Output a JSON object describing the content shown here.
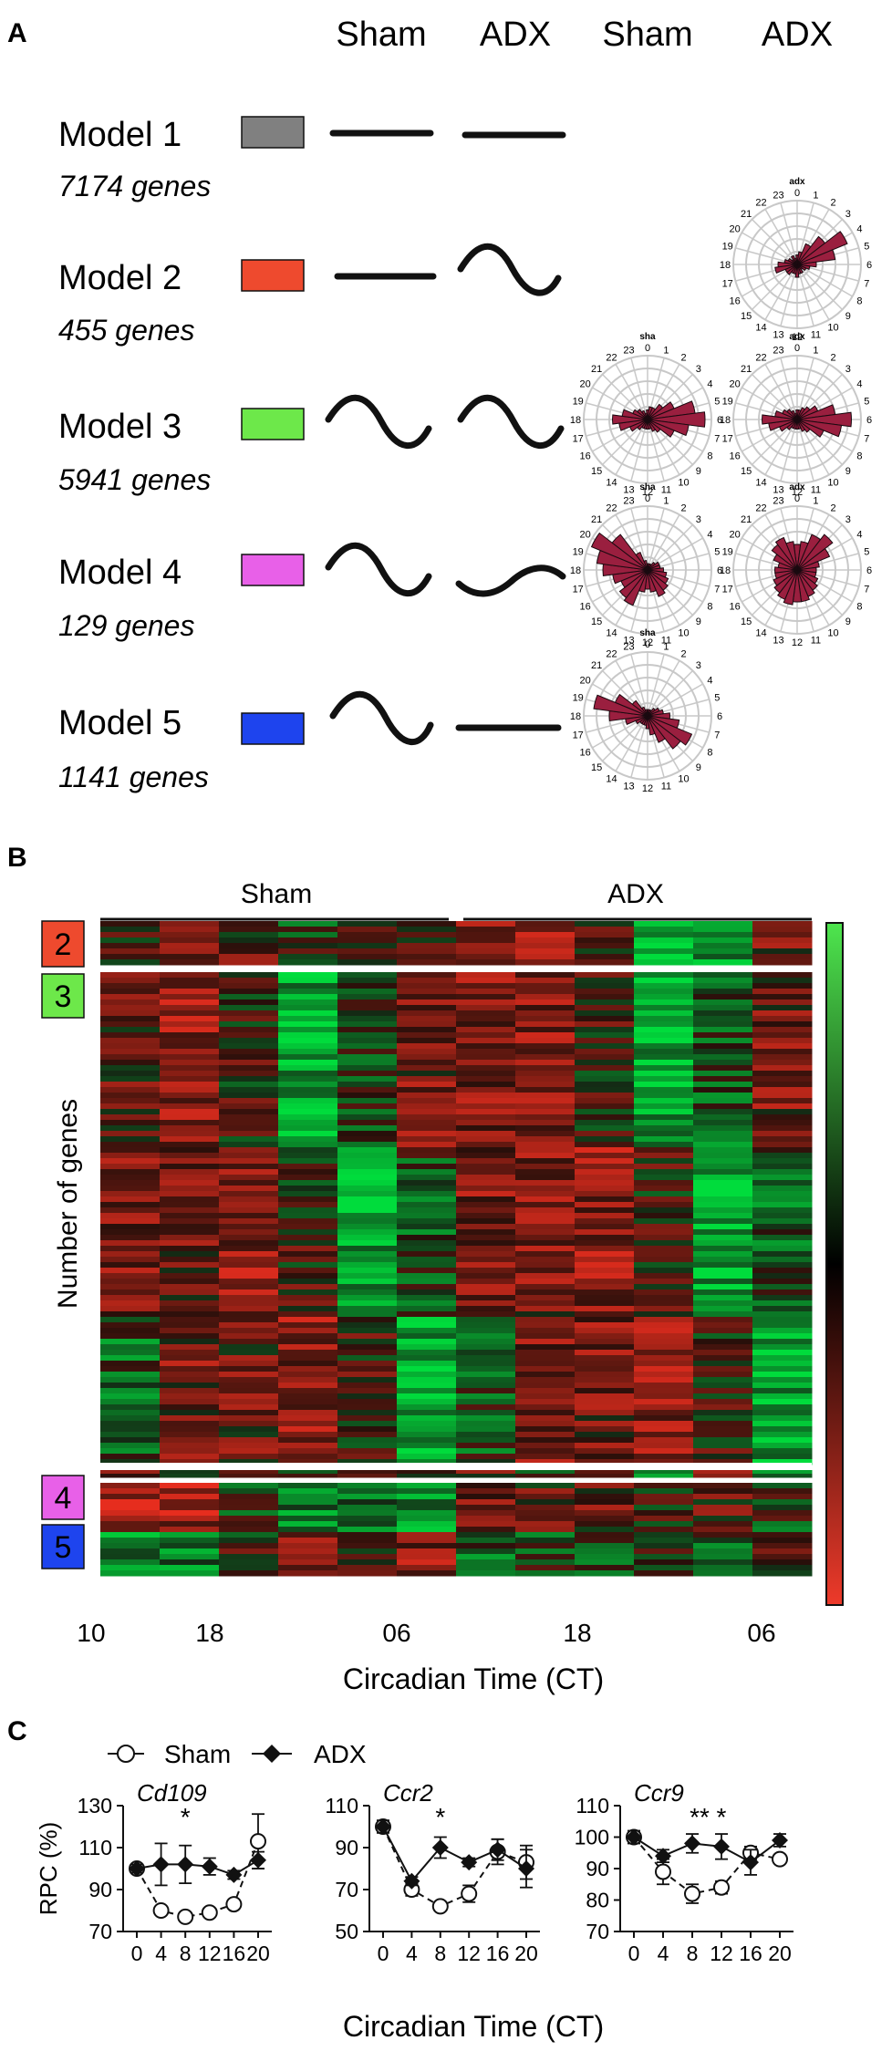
{
  "panels": {
    "a": "A",
    "b": "B",
    "c": "C"
  },
  "panel_a": {
    "columns": [
      "Sham",
      "ADX",
      "Sham",
      "ADX"
    ],
    "models": [
      {
        "name": "Model 1",
        "genes": "7174 genes",
        "color": "#808080",
        "sham": "flat",
        "adx": "flat"
      },
      {
        "name": "Model 2",
        "genes": "455 genes",
        "color": "#ee4a2e",
        "sham": "flat",
        "adx": "wave"
      },
      {
        "name": "Model 3",
        "genes": "5941 genes",
        "color": "#6de84a",
        "sham": "wave",
        "adx": "wave"
      },
      {
        "name": "Model 4",
        "genes": "129 genes",
        "color": "#e860e8",
        "sham": "wave",
        "adx": "damped-wave"
      },
      {
        "name": "Model 5",
        "genes": "1141 genes",
        "color": "#1e44ee",
        "sham": "wave",
        "adx": "flat"
      }
    ],
    "rose_hours": [
      "0",
      "1",
      "2",
      "3",
      "4",
      "5",
      "6",
      "7",
      "8",
      "9",
      "10",
      "11",
      "12",
      "13",
      "14",
      "15",
      "16",
      "17",
      "18",
      "19",
      "20",
      "21",
      "22",
      "23"
    ],
    "rose_plots": [
      {
        "model": 2,
        "column": "ADX",
        "label": "adx",
        "values": [
          0.15,
          0.2,
          0.35,
          0.55,
          0.85,
          0.6,
          0.3,
          0.2,
          0.15,
          0.1,
          0.15,
          0.15,
          0.2,
          0.15,
          0.15,
          0.2,
          0.2,
          0.35,
          0.3,
          0.2,
          0.15,
          0.1,
          0.15,
          0.1
        ]
      },
      {
        "model": 3,
        "column": "Sham",
        "label": "sha",
        "values": [
          0.15,
          0.2,
          0.2,
          0.3,
          0.45,
          0.75,
          0.9,
          0.65,
          0.45,
          0.25,
          0.2,
          0.15,
          0.15,
          0.15,
          0.15,
          0.2,
          0.3,
          0.45,
          0.55,
          0.4,
          0.25,
          0.2,
          0.15,
          0.1
        ]
      },
      {
        "model": 3,
        "column": "ADX",
        "label": "adx",
        "values": [
          0.15,
          0.15,
          0.2,
          0.25,
          0.35,
          0.6,
          0.85,
          0.7,
          0.45,
          0.25,
          0.2,
          0.15,
          0.15,
          0.15,
          0.15,
          0.2,
          0.3,
          0.45,
          0.55,
          0.35,
          0.25,
          0.2,
          0.15,
          0.1
        ]
      },
      {
        "model": 4,
        "column": "Sham",
        "label": "sha",
        "values": [
          0.1,
          0.1,
          0.1,
          0.15,
          0.2,
          0.2,
          0.25,
          0.3,
          0.35,
          0.4,
          0.45,
          0.35,
          0.3,
          0.35,
          0.6,
          0.55,
          0.45,
          0.55,
          0.7,
          0.8,
          0.95,
          0.7,
          0.3,
          0.15
        ]
      },
      {
        "model": 4,
        "column": "ADX",
        "label": "adx",
        "values": [
          0.4,
          0.45,
          0.6,
          0.7,
          0.55,
          0.35,
          0.3,
          0.3,
          0.35,
          0.4,
          0.45,
          0.5,
          0.5,
          0.55,
          0.5,
          0.45,
          0.4,
          0.35,
          0.35,
          0.3,
          0.4,
          0.5,
          0.55,
          0.45
        ]
      },
      {
        "model": 5,
        "column": "Sham",
        "label": "sha",
        "values": [
          0.1,
          0.1,
          0.1,
          0.15,
          0.2,
          0.25,
          0.35,
          0.5,
          0.75,
          0.65,
          0.45,
          0.3,
          0.2,
          0.15,
          0.15,
          0.15,
          0.2,
          0.35,
          0.6,
          0.85,
          0.55,
          0.3,
          0.15,
          0.1
        ]
      }
    ]
  },
  "panel_b": {
    "groups": [
      "Sham",
      "ADX"
    ],
    "ylabel": "Number of genes",
    "xlabel": "Circadian Time (CT)",
    "xticks": [
      "10",
      "18",
      "06",
      "18",
      "06"
    ],
    "row_labels": [
      {
        "text": "2",
        "color": "#ee4a2e"
      },
      {
        "text": "3",
        "color": "#6de84a"
      },
      {
        "text": "4",
        "color": "#e860e8"
      },
      {
        "text": "5",
        "color": "#1e44ee"
      }
    ],
    "colorbar": {
      "top": "#4ee64e",
      "middle": "#000000",
      "bottom": "#ee3a2a"
    }
  },
  "chart_data": [
    {
      "type": "line",
      "title": "Cd109",
      "xlabel": "Circadian Time (CT)",
      "ylabel": "RPC (%)",
      "x": [
        0,
        4,
        8,
        12,
        16,
        20
      ],
      "xticks": [
        "0",
        "4",
        "8",
        "12",
        "16",
        "20"
      ],
      "yticks": [
        "70",
        "90",
        "110",
        "130"
      ],
      "ylim": [
        70,
        130
      ],
      "series": [
        {
          "name": "Sham",
          "values": [
            100,
            80,
            77,
            79,
            83,
            113
          ],
          "errors": [
            0,
            2,
            2,
            2,
            1,
            13
          ]
        },
        {
          "name": "ADX",
          "values": [
            100,
            102,
            102,
            101,
            97,
            104
          ],
          "errors": [
            2,
            10,
            9,
            4,
            2,
            4
          ]
        }
      ],
      "annotations": [
        {
          "x": 8,
          "text": "*"
        }
      ]
    },
    {
      "type": "line",
      "title": "Ccr2",
      "xlabel": "Circadian Time (CT)",
      "ylabel": "",
      "x": [
        0,
        4,
        8,
        12,
        16,
        20
      ],
      "xticks": [
        "0",
        "4",
        "8",
        "12",
        "16",
        "20"
      ],
      "yticks": [
        "50",
        "70",
        "90",
        "110"
      ],
      "ylim": [
        50,
        110
      ],
      "series": [
        {
          "name": "Sham",
          "values": [
            100,
            70,
            62,
            68,
            88,
            83
          ],
          "errors": [
            2,
            3,
            2,
            4,
            6,
            8
          ]
        },
        {
          "name": "ADX",
          "values": [
            100,
            74,
            90,
            83,
            89,
            80
          ],
          "errors": [
            3,
            2,
            5,
            2,
            5,
            9
          ]
        }
      ],
      "annotations": [
        {
          "x": 8,
          "text": "*"
        }
      ]
    },
    {
      "type": "line",
      "title": "Ccr9",
      "xlabel": "Circadian Time (CT)",
      "ylabel": "",
      "x": [
        0,
        4,
        8,
        12,
        16,
        20
      ],
      "xticks": [
        "0",
        "4",
        "8",
        "12",
        "16",
        "20"
      ],
      "yticks": [
        "70",
        "80",
        "90",
        "100",
        "110"
      ],
      "ylim": [
        70,
        110
      ],
      "series": [
        {
          "name": "Sham",
          "values": [
            100,
            89,
            82,
            84,
            95,
            93
          ],
          "errors": [
            2,
            4,
            3,
            2,
            2,
            1
          ]
        },
        {
          "name": "ADX",
          "values": [
            100,
            94,
            98,
            97,
            92,
            99
          ],
          "errors": [
            2,
            2,
            3,
            4,
            4,
            2
          ]
        }
      ],
      "annotations": [
        {
          "x": 8,
          "text": "**"
        },
        {
          "x": 12,
          "text": "*"
        }
      ]
    }
  ],
  "panel_c": {
    "legend": [
      "Sham",
      "ADX"
    ],
    "xlabel": "Circadian Time (CT)"
  }
}
